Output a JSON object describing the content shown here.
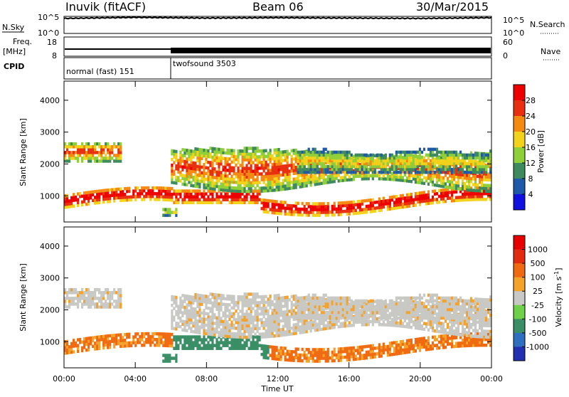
{
  "header": {
    "station": "Inuvik (fitACF)",
    "beam": "Beam 06",
    "date": "30/Mar/2015"
  },
  "side_labels": {
    "nsky": "N.Sky",
    "nsearch": "N.Search",
    "freq_line1": "Freq.",
    "freq_line2": "[MHz]",
    "nave": "Nave",
    "cpid": "CPID"
  },
  "chart_data": [
    {
      "type": "line",
      "name": "noise",
      "y_left_ticks": [
        "10^5",
        "10^0"
      ],
      "y_right_ticks": [
        "10^5",
        "10^0"
      ],
      "x": [
        0,
        4,
        8,
        12,
        16,
        20,
        24
      ],
      "values_nsky_log10": [
        4.4,
        4.7,
        4.5,
        4.6,
        4.5,
        4.4,
        4.6
      ]
    },
    {
      "type": "line",
      "name": "frequency / nave",
      "y_left_ticks": [
        "18",
        "8"
      ],
      "y_right_ticks": [
        "60",
        "0"
      ],
      "x": [
        0,
        6,
        6,
        24
      ],
      "freq_mhz": [
        11,
        11,
        11,
        11
      ]
    },
    {
      "type": "table",
      "name": "cpid",
      "segments": [
        {
          "label": "normal (fast) 151",
          "start_hour": 0,
          "end_hour": 6
        },
        {
          "label": "twofsound 3503",
          "start_hour": 6,
          "end_hour": 24
        }
      ]
    },
    {
      "type": "heatmap",
      "name": "power",
      "ylabel": "Slant Range [km]",
      "yticks": [
        1000,
        2000,
        3000,
        4000
      ],
      "ylim": [
        180,
        4600
      ],
      "colorbar_label": "Power [dB]",
      "colorbar_ticks": [
        4,
        8,
        12,
        16,
        20,
        24,
        28
      ],
      "colorbar_colors": [
        "#1010e0",
        "#1f5aa8",
        "#3e8a5f",
        "#8fcf3a",
        "#f2d21a",
        "#f58a12",
        "#e83010",
        "#ee0000"
      ]
    },
    {
      "type": "heatmap",
      "name": "velocity",
      "ylabel": "Slant Range [km]",
      "yticks": [
        1000,
        2000,
        3000,
        4000
      ],
      "ylim": [
        180,
        4600
      ],
      "colorbar_label": "Velocity [m s-1]",
      "colorbar_ticks": [
        1000,
        500,
        100,
        25,
        -25,
        -100,
        -500,
        -1000
      ],
      "colorbar_colors": [
        "#2030b0",
        "#2e6fc0",
        "#3a8f66",
        "#6fd04a",
        "#c8c8c4",
        "#f5a22a",
        "#ef6a10",
        "#e22c10",
        "#e60000"
      ]
    }
  ],
  "time_axis": {
    "label": "Time UT",
    "ticks": [
      "00:00",
      "04:00",
      "08:00",
      "12:00",
      "16:00",
      "20:00",
      "00:00"
    ]
  }
}
